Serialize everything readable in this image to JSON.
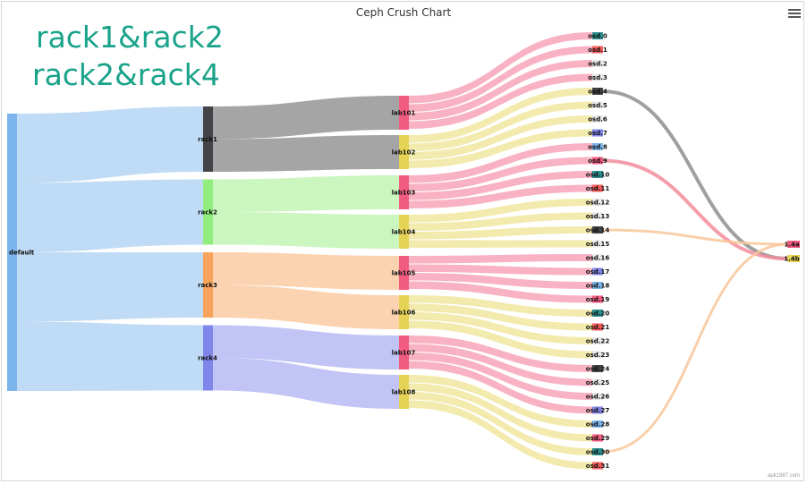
{
  "title": "Ceph Crush Chart",
  "annotations": [
    "rack1&rack2",
    "rack2&rack4"
  ],
  "credit": "apk1987.com",
  "menu_icon": "hamburger-menu-icon",
  "colors": {
    "default": "#7cb5ec",
    "rack1": "#434348",
    "rack2": "#90ed7d",
    "rack3": "#f7a35c",
    "rack4": "#8085e9",
    "lab_odd": "#f15c80",
    "lab_even": "#e4d354",
    "default_links": "#bcd9f4",
    "rack1_links": "#a0a0a0",
    "rack2_links": "#c8f5bd",
    "rack3_links": "#fbd1ad",
    "rack4_links": "#bfc1f4",
    "lab_odd_links": "#f8aec0",
    "lab_even_links": "#f2e9aa",
    "annotation": "#1aa38a"
  },
  "chart_data": {
    "type": "sankey",
    "title": "Ceph Crush Chart",
    "nodes": [
      {
        "id": "default",
        "label": "default",
        "column": 0
      },
      {
        "id": "rack1",
        "label": "rack1",
        "column": 1
      },
      {
        "id": "rack2",
        "label": "rack2",
        "column": 1
      },
      {
        "id": "rack3",
        "label": "rack3",
        "column": 1
      },
      {
        "id": "rack4",
        "label": "rack4",
        "column": 1
      },
      {
        "id": "lab101",
        "label": "lab101",
        "column": 2
      },
      {
        "id": "lab102",
        "label": "lab102",
        "column": 2
      },
      {
        "id": "lab103",
        "label": "lab103",
        "column": 2
      },
      {
        "id": "lab104",
        "label": "lab104",
        "column": 2
      },
      {
        "id": "lab105",
        "label": "lab105",
        "column": 2
      },
      {
        "id": "lab106",
        "label": "lab106",
        "column": 2
      },
      {
        "id": "lab107",
        "label": "lab107",
        "column": 2
      },
      {
        "id": "lab108",
        "label": "lab108",
        "column": 2
      },
      {
        "id": "osd.0",
        "label": "osd.0",
        "column": 3
      },
      {
        "id": "osd.1",
        "label": "osd.1",
        "column": 3
      },
      {
        "id": "osd.2",
        "label": "osd.2",
        "column": 3
      },
      {
        "id": "osd.3",
        "label": "osd.3",
        "column": 3
      },
      {
        "id": "osd.4",
        "label": "osd.4",
        "column": 3
      },
      {
        "id": "osd.5",
        "label": "osd.5",
        "column": 3
      },
      {
        "id": "osd.6",
        "label": "osd.6",
        "column": 3
      },
      {
        "id": "osd.7",
        "label": "osd.7",
        "column": 3
      },
      {
        "id": "osd.8",
        "label": "osd.8",
        "column": 3
      },
      {
        "id": "osd.9",
        "label": "osd.9",
        "column": 3
      },
      {
        "id": "osd.10",
        "label": "osd.10",
        "column": 3
      },
      {
        "id": "osd.11",
        "label": "osd.11",
        "column": 3
      },
      {
        "id": "osd.12",
        "label": "osd.12",
        "column": 3
      },
      {
        "id": "osd.13",
        "label": "osd.13",
        "column": 3
      },
      {
        "id": "osd.14",
        "label": "osd.14",
        "column": 3
      },
      {
        "id": "osd.15",
        "label": "osd.15",
        "column": 3
      },
      {
        "id": "osd.16",
        "label": "osd.16",
        "column": 3
      },
      {
        "id": "osd.17",
        "label": "osd.17",
        "column": 3
      },
      {
        "id": "osd.18",
        "label": "osd.18",
        "column": 3
      },
      {
        "id": "osd.19",
        "label": "osd.19",
        "column": 3
      },
      {
        "id": "osd.20",
        "label": "osd.20",
        "column": 3
      },
      {
        "id": "osd.21",
        "label": "osd.21",
        "column": 3
      },
      {
        "id": "osd.22",
        "label": "osd.22",
        "column": 3
      },
      {
        "id": "osd.23",
        "label": "osd.23",
        "column": 3
      },
      {
        "id": "osd.24",
        "label": "osd.24",
        "column": 3
      },
      {
        "id": "osd.25",
        "label": "osd.25",
        "column": 3
      },
      {
        "id": "osd.26",
        "label": "osd.26",
        "column": 3
      },
      {
        "id": "osd.27",
        "label": "osd.27",
        "column": 3
      },
      {
        "id": "osd.28",
        "label": "osd.28",
        "column": 3
      },
      {
        "id": "osd.29",
        "label": "osd.29",
        "column": 3
      },
      {
        "id": "osd.30",
        "label": "osd.30",
        "column": 3
      },
      {
        "id": "osd.31",
        "label": "osd.31",
        "column": 3
      },
      {
        "id": "1.4a",
        "label": "1.4a",
        "column": 4
      },
      {
        "id": "1.4b",
        "label": "1.4b",
        "column": 4
      }
    ],
    "links": [
      {
        "from": "default",
        "to": "rack1",
        "weight": 8
      },
      {
        "from": "default",
        "to": "rack2",
        "weight": 8
      },
      {
        "from": "default",
        "to": "rack3",
        "weight": 8
      },
      {
        "from": "default",
        "to": "rack4",
        "weight": 8
      },
      {
        "from": "rack1",
        "to": "lab101",
        "weight": 4
      },
      {
        "from": "rack1",
        "to": "lab102",
        "weight": 4
      },
      {
        "from": "rack2",
        "to": "lab103",
        "weight": 4
      },
      {
        "from": "rack2",
        "to": "lab104",
        "weight": 4
      },
      {
        "from": "rack3",
        "to": "lab105",
        "weight": 4
      },
      {
        "from": "rack3",
        "to": "lab106",
        "weight": 4
      },
      {
        "from": "rack4",
        "to": "lab107",
        "weight": 4
      },
      {
        "from": "rack4",
        "to": "lab108",
        "weight": 4
      },
      {
        "from": "lab101",
        "to": "osd.0",
        "weight": 1
      },
      {
        "from": "lab101",
        "to": "osd.1",
        "weight": 1
      },
      {
        "from": "lab101",
        "to": "osd.2",
        "weight": 1
      },
      {
        "from": "lab101",
        "to": "osd.3",
        "weight": 1
      },
      {
        "from": "lab102",
        "to": "osd.4",
        "weight": 1
      },
      {
        "from": "lab102",
        "to": "osd.5",
        "weight": 1
      },
      {
        "from": "lab102",
        "to": "osd.6",
        "weight": 1
      },
      {
        "from": "lab102",
        "to": "osd.7",
        "weight": 1
      },
      {
        "from": "lab103",
        "to": "osd.8",
        "weight": 1
      },
      {
        "from": "lab103",
        "to": "osd.9",
        "weight": 1
      },
      {
        "from": "lab103",
        "to": "osd.10",
        "weight": 1
      },
      {
        "from": "lab103",
        "to": "osd.11",
        "weight": 1
      },
      {
        "from": "lab104",
        "to": "osd.12",
        "weight": 1
      },
      {
        "from": "lab104",
        "to": "osd.13",
        "weight": 1
      },
      {
        "from": "lab104",
        "to": "osd.14",
        "weight": 1
      },
      {
        "from": "lab104",
        "to": "osd.15",
        "weight": 1
      },
      {
        "from": "lab105",
        "to": "osd.16",
        "weight": 1
      },
      {
        "from": "lab105",
        "to": "osd.17",
        "weight": 1
      },
      {
        "from": "lab105",
        "to": "osd.18",
        "weight": 1
      },
      {
        "from": "lab105",
        "to": "osd.19",
        "weight": 1
      },
      {
        "from": "lab106",
        "to": "osd.20",
        "weight": 1
      },
      {
        "from": "lab106",
        "to": "osd.21",
        "weight": 1
      },
      {
        "from": "lab106",
        "to": "osd.22",
        "weight": 1
      },
      {
        "from": "lab106",
        "to": "osd.23",
        "weight": 1
      },
      {
        "from": "lab107",
        "to": "osd.24",
        "weight": 1
      },
      {
        "from": "lab107",
        "to": "osd.25",
        "weight": 1
      },
      {
        "from": "lab107",
        "to": "osd.26",
        "weight": 1
      },
      {
        "from": "lab107",
        "to": "osd.27",
        "weight": 1
      },
      {
        "from": "lab108",
        "to": "osd.28",
        "weight": 1
      },
      {
        "from": "lab108",
        "to": "osd.29",
        "weight": 1
      },
      {
        "from": "lab108",
        "to": "osd.30",
        "weight": 1
      },
      {
        "from": "lab108",
        "to": "osd.31",
        "weight": 1
      },
      {
        "from": "osd.4",
        "to": "1.4b",
        "weight": 0.5
      },
      {
        "from": "osd.9",
        "to": "1.4b",
        "weight": 0.5
      },
      {
        "from": "osd.14",
        "to": "1.4a",
        "weight": 0.5
      },
      {
        "from": "osd.30",
        "to": "1.4a",
        "weight": 0.5
      }
    ]
  }
}
